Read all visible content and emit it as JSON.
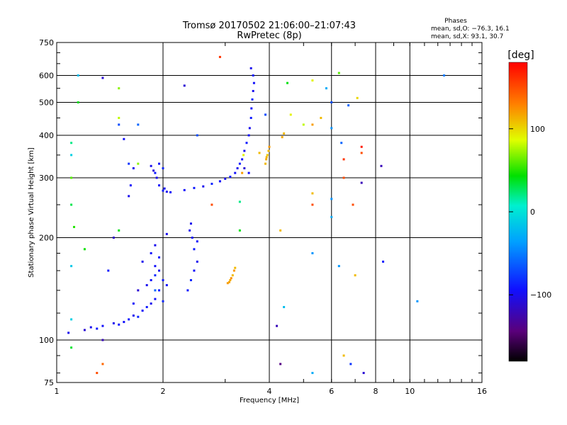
{
  "chart_data": {
    "type": "scatter",
    "title": "Tromsø 20170502 21:06:00–21:07:43",
    "subtitle": "RwPretec (8p)",
    "xlabel": "Frequency [MHz]",
    "ylabel": "Stationary phase Virtual Height [km]",
    "x_scale": "log",
    "y_scale": "log",
    "xlim": [
      1,
      16
    ],
    "ylim": [
      75,
      750
    ],
    "x_ticks": [
      1,
      2,
      4,
      6,
      8,
      10,
      16
    ],
    "x_tick_labels": [
      "1",
      "2",
      "4",
      "6",
      "8",
      "10",
      "16"
    ],
    "y_ticks": [
      75,
      100,
      200,
      300,
      400,
      500,
      600,
      750
    ],
    "y_tick_labels": [
      "75",
      "100",
      "200",
      "300",
      "400",
      "500",
      "600",
      "750"
    ],
    "grid": true,
    "stats": {
      "header": "Phases",
      "line_o": "mean, sd,O: −76.3, 16.1",
      "line_x": "mean, sd,X:  93.1, 30.7"
    },
    "colorbar": {
      "label": "[deg]",
      "range": [
        -180,
        180
      ],
      "ticks": [
        100,
        0,
        -100
      ],
      "tick_labels": [
        "100",
        "0",
        "−100"
      ]
    },
    "series": [
      {
        "points": [
          [
            1.55,
            113,
            -95
          ],
          [
            1.6,
            115,
            -90
          ],
          [
            1.65,
            118,
            -100
          ],
          [
            1.7,
            117,
            -85
          ],
          [
            1.75,
            122,
            -95
          ],
          [
            1.8,
            125,
            -90
          ],
          [
            1.85,
            128,
            -100
          ],
          [
            1.9,
            132,
            -95
          ],
          [
            1.95,
            140,
            -90
          ],
          [
            1.8,
            145,
            -100
          ],
          [
            1.85,
            150,
            -95
          ],
          [
            1.9,
            155,
            -85
          ],
          [
            1.95,
            160,
            -100
          ],
          [
            1.9,
            165,
            -95
          ],
          [
            2.0,
            150,
            -90
          ],
          [
            1.75,
            170,
            -100
          ],
          [
            1.85,
            180,
            -95
          ],
          [
            1.95,
            175,
            -90
          ],
          [
            1.9,
            190,
            -100
          ],
          [
            2.0,
            130,
            -85
          ],
          [
            1.7,
            140,
            -110
          ],
          [
            1.65,
            128,
            -95
          ],
          [
            1.5,
            111,
            -90
          ],
          [
            1.45,
            112,
            -100
          ],
          [
            1.35,
            110,
            -95
          ],
          [
            1.3,
            108,
            -90
          ],
          [
            1.25,
            109,
            -100
          ],
          [
            1.2,
            107,
            -110
          ],
          [
            1.9,
            140,
            -60
          ],
          [
            2.05,
            145,
            -95
          ]
        ]
      },
      {
        "points": [
          [
            2.4,
            220,
            -100
          ],
          [
            2.42,
            200,
            -95
          ],
          [
            2.45,
            185,
            -90
          ],
          [
            2.5,
            170,
            -100
          ],
          [
            2.45,
            160,
            -95
          ],
          [
            2.4,
            150,
            -85
          ],
          [
            2.35,
            140,
            -90
          ],
          [
            2.38,
            210,
            -100
          ],
          [
            2.5,
            195,
            -95
          ]
        ]
      },
      {
        "points": [
          [
            1.92,
            300,
            -100
          ],
          [
            1.95,
            285,
            -95
          ],
          [
            2.0,
            275,
            -90
          ],
          [
            2.05,
            273,
            -100
          ],
          [
            2.1,
            272,
            -95
          ],
          [
            1.9,
            310,
            -90
          ],
          [
            1.85,
            325,
            -100
          ],
          [
            1.95,
            330,
            -95
          ],
          [
            2.0,
            320,
            -85
          ],
          [
            1.88,
            315,
            -110
          ],
          [
            2.02,
            279,
            -95
          ]
        ]
      },
      {
        "points": [
          [
            2.3,
            276,
            -95
          ],
          [
            2.45,
            280,
            -90
          ],
          [
            2.6,
            283,
            -100
          ],
          [
            2.75,
            288,
            -85
          ],
          [
            2.9,
            293,
            -95
          ],
          [
            3.0,
            298,
            -100
          ],
          [
            3.1,
            302,
            -90
          ],
          [
            3.2,
            310,
            -95
          ],
          [
            3.25,
            320,
            -100
          ],
          [
            3.3,
            330,
            -90
          ],
          [
            3.35,
            340,
            -95
          ],
          [
            3.4,
            360,
            -100
          ],
          [
            3.45,
            380,
            -90
          ],
          [
            3.5,
            400,
            -95
          ],
          [
            3.52,
            420,
            -100
          ],
          [
            3.55,
            450,
            -90
          ],
          [
            3.56,
            480,
            -95
          ],
          [
            3.58,
            510,
            -85
          ],
          [
            3.6,
            540,
            -100
          ],
          [
            3.62,
            570,
            -95
          ],
          [
            3.6,
            600,
            -90
          ],
          [
            3.55,
            630,
            -100
          ],
          [
            3.5,
            310,
            -95
          ],
          [
            3.4,
            320,
            -110
          ]
        ]
      },
      {
        "points": [
          [
            3.05,
            147,
            120
          ],
          [
            3.1,
            150,
            115
          ],
          [
            3.15,
            155,
            110
          ],
          [
            3.12,
            152,
            125
          ],
          [
            3.08,
            148,
            118
          ],
          [
            3.2,
            163,
            110
          ],
          [
            3.18,
            160,
            122
          ]
        ]
      },
      {
        "points": [
          [
            3.9,
            330,
            110
          ],
          [
            3.92,
            340,
            115
          ],
          [
            3.95,
            350,
            105
          ],
          [
            3.98,
            360,
            110
          ],
          [
            4.0,
            370,
            120
          ],
          [
            3.93,
            345,
            112
          ],
          [
            4.35,
            395,
            115
          ],
          [
            4.4,
            405,
            110
          ]
        ]
      },
      {
        "points": [
          [
            1.15,
            600,
            -20
          ],
          [
            1.15,
            500,
            40
          ],
          [
            1.1,
            380,
            20
          ],
          [
            1.1,
            350,
            -10
          ],
          [
            1.1,
            300,
            60
          ],
          [
            1.1,
            250,
            30
          ],
          [
            1.12,
            215,
            50
          ],
          [
            1.2,
            185,
            45
          ],
          [
            1.1,
            165,
            -15
          ],
          [
            1.1,
            115,
            -10
          ],
          [
            1.1,
            95,
            35
          ],
          [
            1.08,
            105,
            -100
          ],
          [
            1.35,
            590,
            -110
          ],
          [
            1.5,
            550,
            70
          ],
          [
            1.5,
            450,
            80
          ],
          [
            1.5,
            430,
            -70
          ],
          [
            1.55,
            390,
            -95
          ],
          [
            1.6,
            330,
            -80
          ],
          [
            1.65,
            320,
            -100
          ],
          [
            1.7,
            430,
            -60
          ],
          [
            1.5,
            210,
            40
          ],
          [
            1.45,
            200,
            -115
          ],
          [
            1.4,
            160,
            -90
          ],
          [
            1.35,
            100,
            -120
          ],
          [
            1.3,
            80,
            150
          ],
          [
            1.35,
            85,
            140
          ],
          [
            1.6,
            265,
            -100
          ],
          [
            1.62,
            285,
            -95
          ],
          [
            2.3,
            560,
            -110
          ],
          [
            2.5,
            400,
            -70
          ],
          [
            2.75,
            250,
            150
          ],
          [
            2.9,
            680,
            160
          ],
          [
            3.3,
            210,
            40
          ],
          [
            3.3,
            255,
            20
          ],
          [
            4.3,
            210,
            110
          ],
          [
            4.5,
            570,
            40
          ],
          [
            4.6,
            460,
            90
          ],
          [
            5.0,
            430,
            80
          ],
          [
            5.3,
            580,
            90
          ],
          [
            5.3,
            430,
            120
          ],
          [
            5.3,
            250,
            150
          ],
          [
            5.3,
            270,
            110
          ],
          [
            5.3,
            180,
            -40
          ],
          [
            5.6,
            450,
            110
          ],
          [
            5.8,
            550,
            -30
          ],
          [
            6.0,
            500,
            -70
          ],
          [
            6.0,
            420,
            -40
          ],
          [
            6.0,
            260,
            -40
          ],
          [
            6.0,
            230,
            -30
          ],
          [
            6.3,
            610,
            60
          ],
          [
            6.4,
            380,
            -60
          ],
          [
            6.5,
            340,
            160
          ],
          [
            6.5,
            300,
            150
          ],
          [
            6.7,
            490,
            -60
          ],
          [
            6.9,
            250,
            150
          ],
          [
            7.0,
            155,
            110
          ],
          [
            7.1,
            515,
            100
          ],
          [
            7.3,
            370,
            170
          ],
          [
            7.3,
            355,
            150
          ],
          [
            7.3,
            290,
            -120
          ],
          [
            7.4,
            80,
            -110
          ],
          [
            8.3,
            325,
            -120
          ],
          [
            8.4,
            170,
            -90
          ],
          [
            6.3,
            165,
            -40
          ],
          [
            6.5,
            90,
            110
          ],
          [
            6.8,
            85,
            -80
          ],
          [
            5.3,
            80,
            -30
          ],
          [
            4.3,
            85,
            -140
          ],
          [
            4.2,
            110,
            -120
          ],
          [
            4.4,
            125,
            -20
          ],
          [
            10.5,
            130,
            -40
          ],
          [
            12.5,
            600,
            -50
          ],
          [
            3.35,
            310,
            120
          ],
          [
            3.38,
            350,
            90
          ],
          [
            3.75,
            355,
            110
          ],
          [
            3.9,
            460,
            -70
          ],
          [
            2.05,
            205,
            -100
          ],
          [
            1.7,
            330,
            70
          ]
        ]
      }
    ]
  }
}
